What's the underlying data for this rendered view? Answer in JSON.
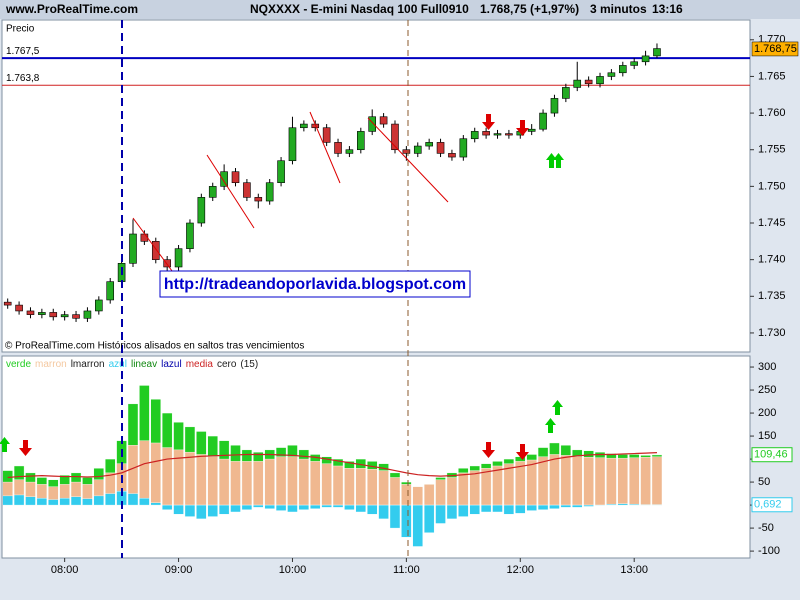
{
  "header": {
    "site": "www.ProRealTime.com",
    "instrument": "NQXXXX - E-mini Nasdaq 100 Full0910",
    "quote": "1.768,75 (+1,97%)",
    "interval": "3 minutos",
    "clock": "13:16"
  },
  "chart_data": [
    {
      "type": "candlestick",
      "label": "Precio",
      "footer": "© ProRealTime.com  Históricos alisados en saltos tras vencimientos",
      "annotation": "http://tradeandoporlavida.blogspot.com",
      "up_color": "#22aa22",
      "down_color": "#cc3333",
      "xlim": [
        447,
        841
      ],
      "ylim": [
        1727.4,
        1772.7
      ],
      "yticks": [
        {
          "value": 1730,
          "label": "1.730"
        },
        {
          "value": 1735,
          "label": "1.735"
        },
        {
          "value": 1740,
          "label": "1.740"
        },
        {
          "value": 1745,
          "label": "1.745"
        },
        {
          "value": 1750,
          "label": "1.750"
        },
        {
          "value": 1755,
          "label": "1.755"
        },
        {
          "value": 1760,
          "label": "1.760"
        },
        {
          "value": 1765,
          "label": "1.765"
        },
        {
          "value": 1770,
          "label": "1.770"
        }
      ],
      "levels": [
        {
          "value": 1767.5,
          "label": "1.767,5",
          "color": "#0000c0"
        },
        {
          "value": 1763.8,
          "label": "1.763,8",
          "color": "#d02020"
        }
      ],
      "last": {
        "value": 1768.75,
        "label": "1.768,75",
        "color": "#ffb000"
      },
      "x": [
        450,
        456,
        462,
        468,
        474,
        480,
        486,
        492,
        498,
        504,
        510,
        516,
        522,
        528,
        534,
        540,
        546,
        552,
        558,
        564,
        570,
        576,
        582,
        588,
        594,
        600,
        606,
        612,
        618,
        624,
        630,
        636,
        642,
        648,
        654,
        660,
        666,
        672,
        678,
        684,
        690,
        696,
        702,
        708,
        714,
        720,
        726,
        732,
        738,
        744,
        750,
        756,
        762,
        768,
        774,
        780,
        786,
        792
      ],
      "open": [
        1734.2,
        1733.8,
        1733.0,
        1732.5,
        1732.8,
        1732.2,
        1732.5,
        1732.0,
        1733.0,
        1734.5,
        1737.0,
        1739.5,
        1743.5,
        1742.5,
        1740.0,
        1739.0,
        1741.5,
        1745.0,
        1748.5,
        1750.0,
        1752.0,
        1750.5,
        1748.5,
        1748.0,
        1750.5,
        1753.5,
        1758.0,
        1758.5,
        1758.0,
        1756.0,
        1754.5,
        1755.0,
        1757.5,
        1759.5,
        1758.5,
        1755.0,
        1754.5,
        1755.5,
        1756.0,
        1754.5,
        1754.0,
        1756.5,
        1757.5,
        1757.0,
        1757.2,
        1757.0,
        1757.5,
        1757.8,
        1760.0,
        1762.0,
        1763.5,
        1764.5,
        1764.0,
        1765.0,
        1765.5,
        1766.5,
        1767.0,
        1767.8
      ],
      "high": [
        1734.7,
        1734.3,
        1733.5,
        1733.3,
        1733.3,
        1733.0,
        1733.0,
        1733.5,
        1735.0,
        1737.5,
        1740.0,
        1745.5,
        1744.0,
        1743.0,
        1740.5,
        1742.0,
        1745.5,
        1749.0,
        1750.5,
        1753.0,
        1752.5,
        1751.0,
        1749.0,
        1751.0,
        1754.0,
        1759.5,
        1759.0,
        1759.0,
        1758.5,
        1756.5,
        1755.5,
        1758.0,
        1760.5,
        1760.0,
        1759.0,
        1755.5,
        1756.0,
        1756.5,
        1756.5,
        1755.0,
        1757.0,
        1758.0,
        1758.0,
        1757.7,
        1757.7,
        1758.0,
        1758.5,
        1760.5,
        1762.5,
        1764.0,
        1767.0,
        1765.0,
        1765.5,
        1766.0,
        1767.0,
        1767.5,
        1768.5,
        1769.5
      ],
      "low": [
        1733.3,
        1732.5,
        1732.0,
        1732.0,
        1731.7,
        1731.7,
        1731.5,
        1731.5,
        1732.5,
        1734.0,
        1736.5,
        1739.0,
        1742.0,
        1739.5,
        1738.0,
        1738.5,
        1741.0,
        1744.5,
        1748.0,
        1749.5,
        1750.0,
        1748.0,
        1747.0,
        1747.5,
        1750.0,
        1753.0,
        1757.5,
        1757.5,
        1755.5,
        1754.0,
        1754.0,
        1754.5,
        1757.0,
        1758.0,
        1754.5,
        1753.5,
        1754.0,
        1755.0,
        1754.0,
        1753.5,
        1753.5,
        1756.0,
        1756.5,
        1756.5,
        1756.5,
        1756.5,
        1757.0,
        1757.5,
        1759.5,
        1761.5,
        1763.0,
        1763.5,
        1763.5,
        1764.5,
        1765.0,
        1766.0,
        1766.5,
        1767.5
      ],
      "close": [
        1733.8,
        1733.0,
        1732.5,
        1732.8,
        1732.2,
        1732.5,
        1732.0,
        1733.0,
        1734.5,
        1737.0,
        1739.5,
        1743.5,
        1742.5,
        1740.0,
        1739.0,
        1741.5,
        1745.0,
        1748.5,
        1750.0,
        1752.0,
        1750.5,
        1748.5,
        1748.0,
        1750.5,
        1753.5,
        1758.0,
        1758.5,
        1758.0,
        1756.0,
        1754.5,
        1755.0,
        1757.5,
        1759.5,
        1758.5,
        1755.0,
        1754.5,
        1755.5,
        1756.0,
        1754.5,
        1754.0,
        1756.5,
        1757.5,
        1757.0,
        1757.2,
        1757.0,
        1757.5,
        1757.8,
        1760.0,
        1762.0,
        1763.5,
        1764.5,
        1764.0,
        1765.0,
        1765.5,
        1766.5,
        1767.0,
        1767.8,
        1768.8
      ]
    },
    {
      "type": "bar",
      "legend": [
        {
          "name": "verde",
          "color": "#22cc22"
        },
        {
          "name": "marron",
          "color": "#f4c8a0"
        },
        {
          "name": "lmarron",
          "color": "#202020"
        },
        {
          "name": "azul",
          "color": "#33ccee"
        },
        {
          "name": "lineav",
          "color": "#118811"
        },
        {
          "name": "lazul",
          "color": "#0000aa"
        },
        {
          "name": "media",
          "color": "#cc2222"
        },
        {
          "name": "cero",
          "color": "#202020"
        },
        {
          "name": "(15)",
          "color": "#202020"
        }
      ],
      "xlim": [
        447,
        841
      ],
      "ylim": [
        -115,
        324
      ],
      "xticks": [
        {
          "value": 480,
          "label": "08:00"
        },
        {
          "value": 540,
          "label": "09:00"
        },
        {
          "value": 600,
          "label": "10:00"
        },
        {
          "value": 660,
          "label": "11:00"
        },
        {
          "value": 720,
          "label": "12:00"
        },
        {
          "value": 780,
          "label": "13:00"
        }
      ],
      "yticks": [
        300,
        250,
        200,
        150,
        100,
        50,
        0,
        -50,
        -100
      ],
      "last_values": [
        {
          "value": 109.46,
          "label": "109,46",
          "color": "#22cc22"
        },
        {
          "value": 0.692,
          "label": "0,692",
          "color": "#33ccee"
        }
      ],
      "x": [
        450,
        456,
        462,
        468,
        474,
        480,
        486,
        492,
        498,
        504,
        510,
        516,
        522,
        528,
        534,
        540,
        546,
        552,
        558,
        564,
        570,
        576,
        582,
        588,
        594,
        600,
        606,
        612,
        618,
        624,
        630,
        636,
        642,
        648,
        654,
        660,
        666,
        672,
        678,
        684,
        690,
        696,
        702,
        708,
        714,
        720,
        726,
        732,
        738,
        744,
        750,
        756,
        762,
        768,
        774,
        780,
        786,
        792
      ],
      "series": [
        {
          "name": "verde",
          "color": "#22cc22",
          "values": [
            75,
            85,
            70,
            60,
            55,
            65,
            70,
            60,
            80,
            100,
            140,
            220,
            260,
            230,
            200,
            180,
            170,
            160,
            150,
            140,
            130,
            120,
            115,
            120,
            125,
            130,
            120,
            110,
            105,
            100,
            95,
            100,
            95,
            90,
            70,
            50,
            40,
            45,
            60,
            70,
            80,
            85,
            90,
            95,
            100,
            105,
            110,
            125,
            135,
            130,
            120,
            118,
            115,
            112,
            110,
            110,
            108,
            109
          ]
        },
        {
          "name": "marron",
          "color": "#f0b890",
          "values": [
            50,
            55,
            50,
            45,
            40,
            45,
            50,
            45,
            55,
            70,
            90,
            130,
            140,
            135,
            125,
            120,
            115,
            110,
            105,
            100,
            95,
            95,
            95,
            100,
            105,
            105,
            100,
            95,
            90,
            85,
            80,
            80,
            78,
            75,
            60,
            45,
            40,
            45,
            55,
            60,
            70,
            75,
            80,
            85,
            90,
            95,
            98,
            105,
            110,
            108,
            105,
            104,
            103,
            102,
            102,
            103,
            104,
            105
          ]
        },
        {
          "name": "azul",
          "color": "#33ccee",
          "values": [
            20,
            22,
            18,
            15,
            12,
            15,
            18,
            14,
            20,
            25,
            30,
            25,
            15,
            5,
            -10,
            -20,
            -25,
            -30,
            -25,
            -20,
            -15,
            -10,
            -5,
            -8,
            -12,
            -15,
            -10,
            -8,
            -5,
            -5,
            -10,
            -15,
            -20,
            -30,
            -50,
            -70,
            -90,
            -60,
            -40,
            -30,
            -25,
            -20,
            -15,
            -15,
            -20,
            -18,
            -12,
            -10,
            -8,
            -5,
            -5,
            -3,
            0,
            2,
            3,
            2,
            1,
            1
          ]
        },
        {
          "name": "media",
          "color": "#cc2222",
          "line": true,
          "values": [
            60,
            62,
            63,
            64,
            63,
            62,
            62,
            61,
            62,
            65,
            70,
            80,
            90,
            95,
            100,
            102,
            104,
            106,
            107,
            108,
            109,
            110,
            110,
            110,
            109,
            108,
            106,
            104,
            100,
            96,
            92,
            88,
            84,
            80,
            75,
            70,
            66,
            64,
            63,
            64,
            66,
            68,
            72,
            76,
            80,
            84,
            88,
            94,
            100,
            104,
            107,
            109,
            110,
            110,
            111,
            112,
            113,
            114
          ]
        }
      ]
    }
  ]
}
